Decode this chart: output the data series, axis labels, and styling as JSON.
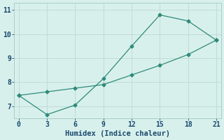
{
  "line1_x": [
    0,
    3,
    6,
    9,
    12,
    15,
    18,
    21
  ],
  "line1_y": [
    7.45,
    6.65,
    7.05,
    8.15,
    9.5,
    10.8,
    10.55,
    9.75
  ],
  "line2_x": [
    0,
    3,
    6,
    9,
    12,
    15,
    18,
    21
  ],
  "line2_y": [
    7.45,
    7.6,
    7.75,
    7.9,
    8.3,
    8.7,
    9.15,
    9.75
  ],
  "line_color": "#2e8b7a",
  "marker": "D",
  "markersize": 2.5,
  "xlabel": "Humidex (Indice chaleur)",
  "xlim": [
    -0.5,
    21.5
  ],
  "ylim": [
    6.5,
    11.3
  ],
  "xticks": [
    0,
    3,
    6,
    9,
    12,
    15,
    18,
    21
  ],
  "yticks": [
    7,
    8,
    9,
    10,
    11
  ],
  "bg_color": "#d8f0ec",
  "grid_color": "#c0ddd8",
  "font_color": "#1a4a6e",
  "xlabel_fontsize": 7.5,
  "tick_fontsize": 7
}
